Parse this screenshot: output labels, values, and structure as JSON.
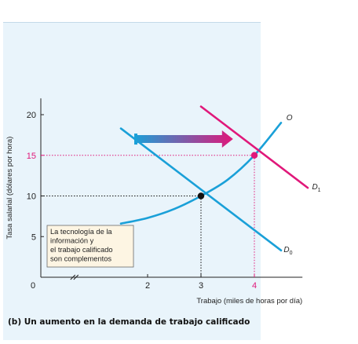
{
  "caption": "(b) Un aumento en la demanda de trabajo calificado",
  "chart_data": {
    "type": "line",
    "title": "",
    "xlabel": "Trabajo (miles de horas por día)",
    "ylabel": "Tasa salarial (dólares por hora)",
    "xlim": [
      0,
      5
    ],
    "ylim": [
      0,
      22
    ],
    "x_ticks": [
      2,
      3,
      4
    ],
    "y_ticks": [
      5,
      10,
      15,
      20
    ],
    "x_origin_label": "0",
    "series": [
      {
        "name": "O",
        "color": "#1aa0d8",
        "x": [
          1.5,
          2.0,
          2.5,
          3.0,
          3.5,
          4.0,
          4.5
        ],
        "y": [
          6.6,
          7.3,
          8.4,
          10.0,
          12.0,
          15.0,
          19.0
        ]
      },
      {
        "name": "D0",
        "color": "#1aa0d8",
        "x": [
          1.5,
          4.5
        ],
        "y": [
          18.3,
          3.3
        ]
      },
      {
        "name": "D1",
        "color": "#e0187a",
        "x": [
          3.0,
          5.0
        ],
        "y": [
          21.0,
          11.0
        ]
      }
    ],
    "equilibria": [
      {
        "x": 3,
        "y": 10,
        "color": "#111111"
      },
      {
        "x": 4,
        "y": 15,
        "color": "#e0187a"
      }
    ],
    "highlight_tick": {
      "x": 4,
      "y": 15,
      "color": "#e0187a"
    },
    "shift_arrow": {
      "from": [
        1.75,
        17.0
      ],
      "to": [
        3.6,
        17.0
      ],
      "from_color": "#1aa0d8",
      "to_color": "#e0187a"
    },
    "curve_labels": [
      {
        "text": "O",
        "x": 4.6,
        "y": 19.3
      },
      {
        "text": "D",
        "sub": "1",
        "x": 5.08,
        "y": 10.8
      },
      {
        "text": "D",
        "sub": "0",
        "x": 4.55,
        "y": 3.1
      }
    ],
    "note_lines": [
      "La tecnología de la",
      "información y",
      "el trabajo calificado",
      "son complementos"
    ]
  }
}
